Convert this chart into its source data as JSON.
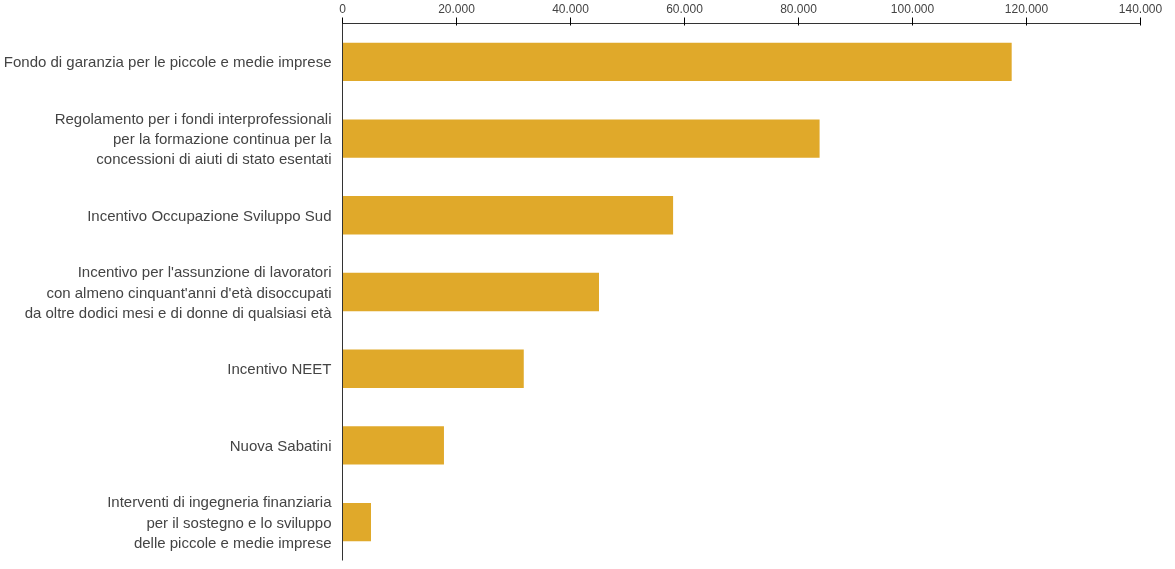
{
  "chart_data": {
    "type": "bar",
    "orientation": "horizontal",
    "categories": [
      "Fondo di garanzia per le piccole e medie imprese",
      "Regolamento per i fondi interprofessionali\nper la formazione continua per la\nconcessioni di aiuti di stato esentati",
      "Incentivo Occupazione Sviluppo Sud",
      "Incentivo per l'assunzione di lavoratori\ncon almeno cinquant'anni d'età disoccupati\nda oltre dodici mesi e di donne di qualsiasi età",
      "Incentivo NEET",
      "Nuova Sabatini",
      "Interventi di ingegneria finanziaria\nper il sostegno e lo sviluppo\ndelle piccole e medie imprese"
    ],
    "values": [
      117400,
      83700,
      58000,
      45000,
      31800,
      17800,
      5000
    ],
    "color": "#e0a92a",
    "xlim": [
      0,
      140000
    ],
    "xticks": [
      {
        "value": 0,
        "label": "0"
      },
      {
        "value": 20000,
        "label": "20.000"
      },
      {
        "value": 40000,
        "label": "40.000"
      },
      {
        "value": 60000,
        "label": "60.000"
      },
      {
        "value": 80000,
        "label": "80.000"
      },
      {
        "value": 100000,
        "label": "100.000"
      },
      {
        "value": 120000,
        "label": "120.000"
      },
      {
        "value": 140000,
        "label": "140.000"
      }
    ],
    "grid": false
  }
}
